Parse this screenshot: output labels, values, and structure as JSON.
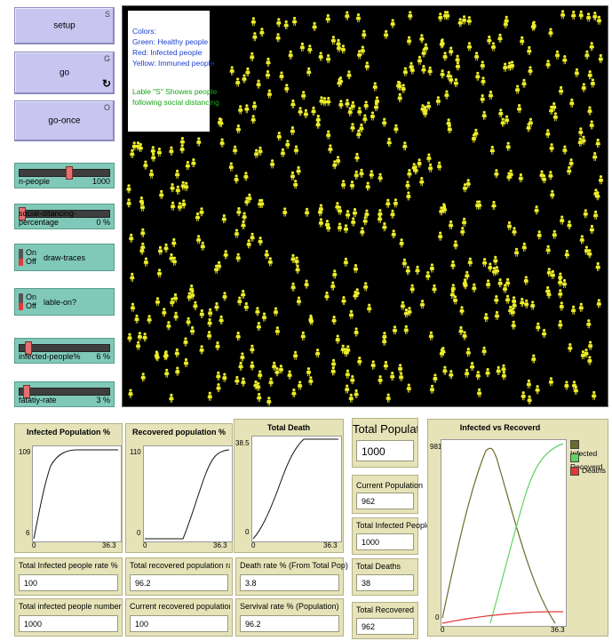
{
  "buttons": {
    "setup": {
      "label": "setup",
      "key": "S"
    },
    "go": {
      "label": "go",
      "key": "G",
      "forever": "↻"
    },
    "go_once": {
      "label": "go-once",
      "key": "O"
    }
  },
  "sliders": [
    {
      "name": "n-people",
      "value": "1000",
      "fraction": 0.5
    },
    {
      "name": "social-ditancing-percentage",
      "value": "0 %",
      "fraction": 0.0
    },
    {
      "name": "infected-people%",
      "value": "6 %",
      "fraction": 0.06
    },
    {
      "name": "fatatiy-rate",
      "value": "3 %",
      "fraction": 0.03
    }
  ],
  "switches": {
    "draw_traces": {
      "name": "draw-traces",
      "on": "On",
      "off": "Off"
    },
    "lable_on": {
      "name": "lable-on?",
      "on": "On",
      "off": "Off"
    }
  },
  "note": {
    "line1": "Colors:",
    "line2": "Green: Healthy people",
    "line3": "Red: Infected people",
    "line4": "Yellow: Immuned people",
    "line5": "Lable \"S\" Showes people",
    "line6": "following social distancing"
  },
  "colors": {
    "healthy": "#3cc43c",
    "infected": "#e23a3a",
    "immune": "#eded2a"
  },
  "plots": {
    "infected": {
      "title": "Infected Population %",
      "ymax": "109",
      "ymin": "6",
      "xmin": "0",
      "xmax": "36.3"
    },
    "recovered": {
      "title": "Recovered population %",
      "ymax": "110",
      "ymin": "0",
      "xmin": "0",
      "xmax": "36.3"
    },
    "death": {
      "title": "Total Death",
      "ymax": "38.5",
      "ymin": "0",
      "xmin": "0",
      "xmax": "36.3"
    },
    "ivr": {
      "title": "Infected vs Recoverd",
      "ymax": "981",
      "ymin": "0",
      "xmin": "0",
      "xmax": "36.3",
      "legend": [
        "Infected",
        "Recoverd",
        "Deaths"
      ]
    }
  },
  "monitors": {
    "total_population": {
      "label": "Total Population",
      "value": "1000"
    },
    "current_population": {
      "label": "Current  Population",
      "value": "962"
    },
    "total_infected_people": {
      "label": "Total Infected People",
      "value": "1000"
    },
    "total_deaths": {
      "label": "Total Deaths",
      "value": "38"
    },
    "total_recovered": {
      "label": "Total Recovered",
      "value": "962"
    },
    "infected_rate": {
      "label": "Total Infected people rate %",
      "value": "100"
    },
    "recovered_rate": {
      "label": "Total recovered population rate (...",
      "value": "96.2"
    },
    "death_rate": {
      "label": "Death rate % (From Total Pop)",
      "value": "3.8"
    },
    "infected_number": {
      "label": "Total infected people number",
      "value": "1000"
    },
    "current_recovered": {
      "label": "Current recovered population rate ...",
      "value": "100"
    },
    "survival_rate": {
      "label": "Servival rate % (Population)",
      "value": "96.2"
    }
  }
}
